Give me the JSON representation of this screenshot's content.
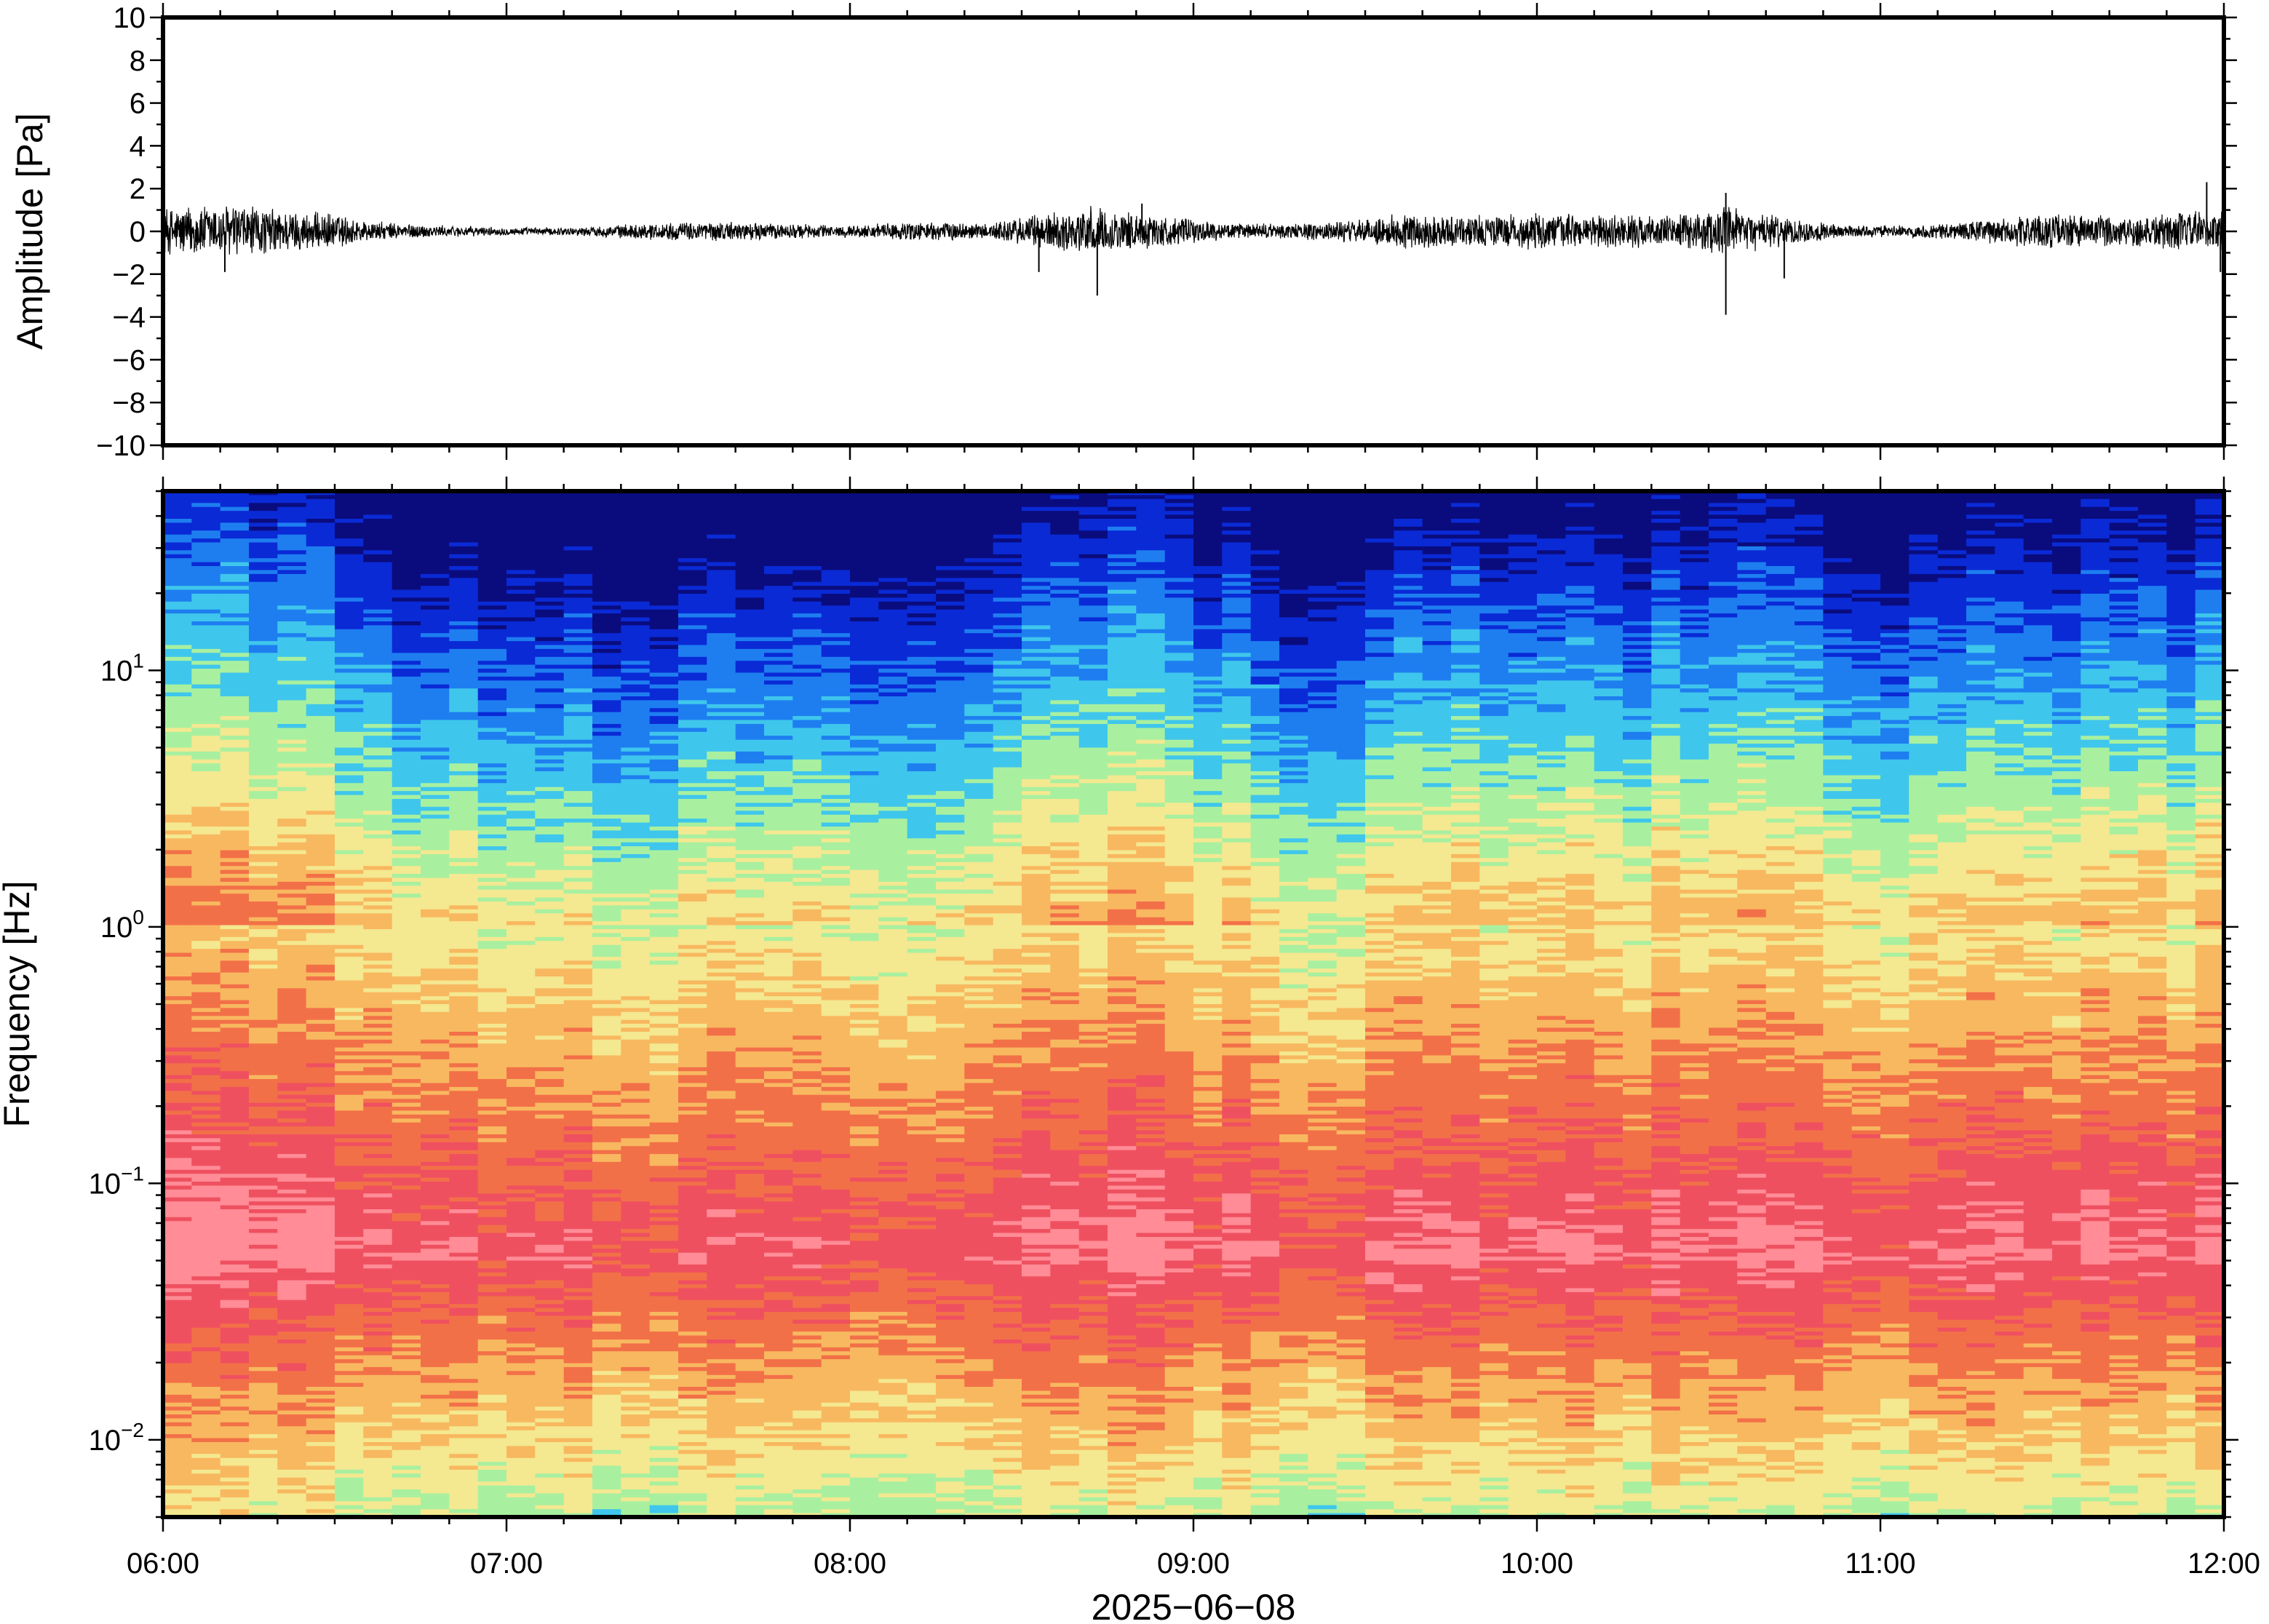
{
  "chart_data": [
    {
      "type": "line",
      "panel": "waveform",
      "ylabel": "Amplitude [Pa]",
      "ylim": [
        -10,
        10
      ],
      "yticks": [
        10,
        8,
        6,
        4,
        2,
        0,
        -2,
        -4,
        -6,
        -8,
        -10
      ],
      "ytick_labels": [
        "10",
        "8",
        "6",
        "4",
        "2",
        "0",
        "−2",
        "−4",
        "−6",
        "−8",
        "−10"
      ],
      "xlim_hours": [
        6,
        12
      ],
      "envelope": {
        "x_hours": [
          6.0,
          6.2,
          6.4,
          6.5,
          6.6,
          6.8,
          7.0,
          7.2,
          7.4,
          7.6,
          7.8,
          8.0,
          8.2,
          8.4,
          8.55,
          8.7,
          8.9,
          9.1,
          9.3,
          9.5,
          9.6,
          9.8,
          10.0,
          10.2,
          10.4,
          10.55,
          10.7,
          10.9,
          11.1,
          11.3,
          11.5,
          11.7,
          11.9,
          12.0
        ],
        "amplitude_pa": [
          1.2,
          1.4,
          1.0,
          0.9,
          0.5,
          0.3,
          0.2,
          0.2,
          0.4,
          0.5,
          0.4,
          0.3,
          0.5,
          0.4,
          0.9,
          1.2,
          0.8,
          0.4,
          0.4,
          0.6,
          0.9,
          0.8,
          0.9,
          0.8,
          0.8,
          1.2,
          0.8,
          0.3,
          0.3,
          0.6,
          0.9,
          0.8,
          1.0,
          1.1
        ]
      },
      "spikes": [
        {
          "x_hour": 6.18,
          "y": -1.9
        },
        {
          "x_hour": 8.55,
          "y": -1.9
        },
        {
          "x_hour": 8.72,
          "y": -3.0
        },
        {
          "x_hour": 8.85,
          "y": 1.3
        },
        {
          "x_hour": 10.55,
          "y": -3.9
        },
        {
          "x_hour": 10.55,
          "y": 1.8
        },
        {
          "x_hour": 10.72,
          "y": -2.2
        },
        {
          "x_hour": 11.95,
          "y": 2.3
        },
        {
          "x_hour": 11.99,
          "y": -1.9
        }
      ]
    },
    {
      "type": "heatmap",
      "panel": "spectrogram",
      "ylabel": "Frequency [Hz]",
      "yscale": "log",
      "ylim": [
        0.005,
        50
      ],
      "ytick_labels": [
        {
          "value": 10,
          "base": "10",
          "exp": "1"
        },
        {
          "value": 1,
          "base": "10",
          "exp": "0"
        },
        {
          "value": 0.1,
          "base": "10",
          "exp": "−1"
        },
        {
          "value": 0.01,
          "base": "10",
          "exp": "−2"
        }
      ],
      "colormap": [
        "#0a0c7e",
        "#0a2ad6",
        "#1e7ef0",
        "#3fc6ec",
        "#a8f0a0",
        "#f4e890",
        "#f8b860",
        "#f27048",
        "#ef5060",
        "#ff8c96"
      ],
      "activity_by_time": {
        "x_hours": [
          6.0,
          6.3,
          6.5,
          6.7,
          7.0,
          7.3,
          7.6,
          7.9,
          8.2,
          8.5,
          8.75,
          9.0,
          9.3,
          9.6,
          9.85,
          10.1,
          10.4,
          10.65,
          10.9,
          11.15,
          11.4,
          11.7,
          12.0
        ],
        "level": [
          0.75,
          0.8,
          0.75,
          0.4,
          0.3,
          0.25,
          0.35,
          0.4,
          0.35,
          0.45,
          0.75,
          0.65,
          0.35,
          0.45,
          0.6,
          0.5,
          0.5,
          0.6,
          0.4,
          0.35,
          0.5,
          0.55,
          0.7
        ]
      }
    }
  ],
  "shared_x_axis": {
    "xlabel": "2025−06−08",
    "tick_hours": [
      6,
      7,
      8,
      9,
      10,
      11,
      12
    ],
    "tick_labels": [
      "06:00",
      "07:00",
      "08:00",
      "09:00",
      "10:00",
      "11:00",
      "12:00"
    ],
    "minor_per_hour": 6
  }
}
